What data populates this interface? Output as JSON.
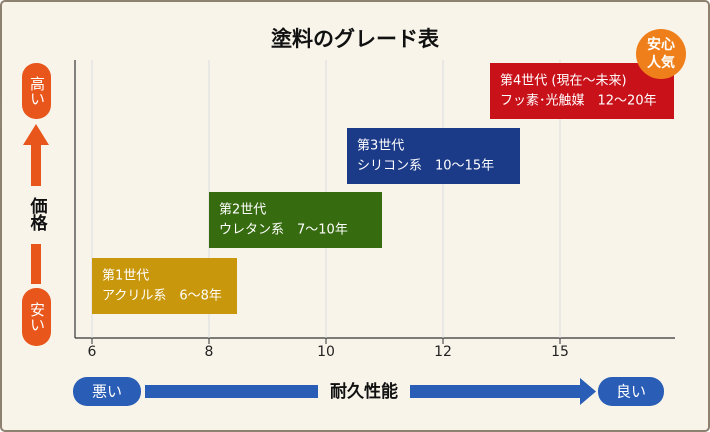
{
  "title": "塗料のグレード表",
  "y_axis": {
    "label": "価格",
    "high": "高い",
    "low": "安い"
  },
  "x_axis": {
    "label": "耐久性能",
    "low": "悪い",
    "high": "良い",
    "ticks": [
      "6",
      "8",
      "10",
      "12",
      "15"
    ]
  },
  "grades": [
    {
      "name": "第1世代",
      "desc": "アクリル系　6〜8年"
    },
    {
      "name": "第2世代",
      "desc": "ウレタン系　7〜10年"
    },
    {
      "name": "第3世代",
      "desc": "シリコン系　10〜15年"
    },
    {
      "name": "第4世代 (現在〜未来)",
      "desc": "フッ素･光触媒　12〜20年"
    }
  ],
  "badge": [
    "安心",
    "人気"
  ]
}
